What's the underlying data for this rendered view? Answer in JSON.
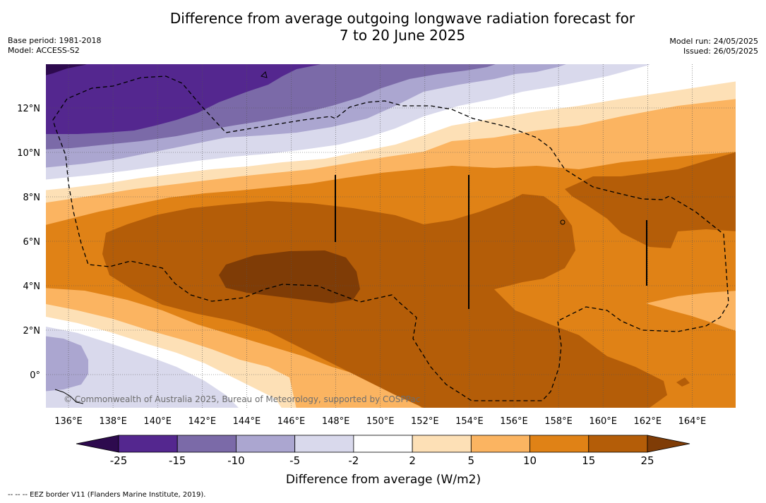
{
  "title": {
    "line1": "Difference from average outgoing longwave radiation forecast for",
    "line2": "7 to 20 June 2025"
  },
  "meta_left": {
    "base_period": "Base period: 1981-2018",
    "model": "Model: ACCESS-S2"
  },
  "meta_right": {
    "model_run": "Model run: 24/05/2025",
    "issued": "Issued: 26/05/2025"
  },
  "map": {
    "lat_labels": [
      "12°N",
      "10°N",
      "8°N",
      "6°N",
      "4°N",
      "2°N",
      "0°"
    ],
    "lon_labels": [
      "136°E",
      "138°E",
      "140°E",
      "142°E",
      "144°E",
      "146°E",
      "148°E",
      "150°E",
      "152°E",
      "154°E",
      "156°E",
      "158°E",
      "160°E",
      "162°E",
      "164°E"
    ],
    "copyright": "© Commonwealth of Australia 2025, Bureau of Meteorology, supported by COSPPac"
  },
  "colorbar": {
    "tick_labels": [
      "-25",
      "-15",
      "-10",
      "-5",
      "-2",
      "2",
      "5",
      "10",
      "15",
      "25"
    ],
    "title": "Difference from average (W/m2)",
    "colors": [
      "#2d0a4e",
      "#54278f",
      "#7b6aa8",
      "#aba6d0",
      "#d9d9ec",
      "#ffffff",
      "#fde0b6",
      "#fbb461",
      "#e08216",
      "#b45d08",
      "#7f3c06"
    ]
  },
  "footer": {
    "legend_line": "--  --  -- EEZ border V11 (Flanders Marine Institute, 2019)."
  }
}
